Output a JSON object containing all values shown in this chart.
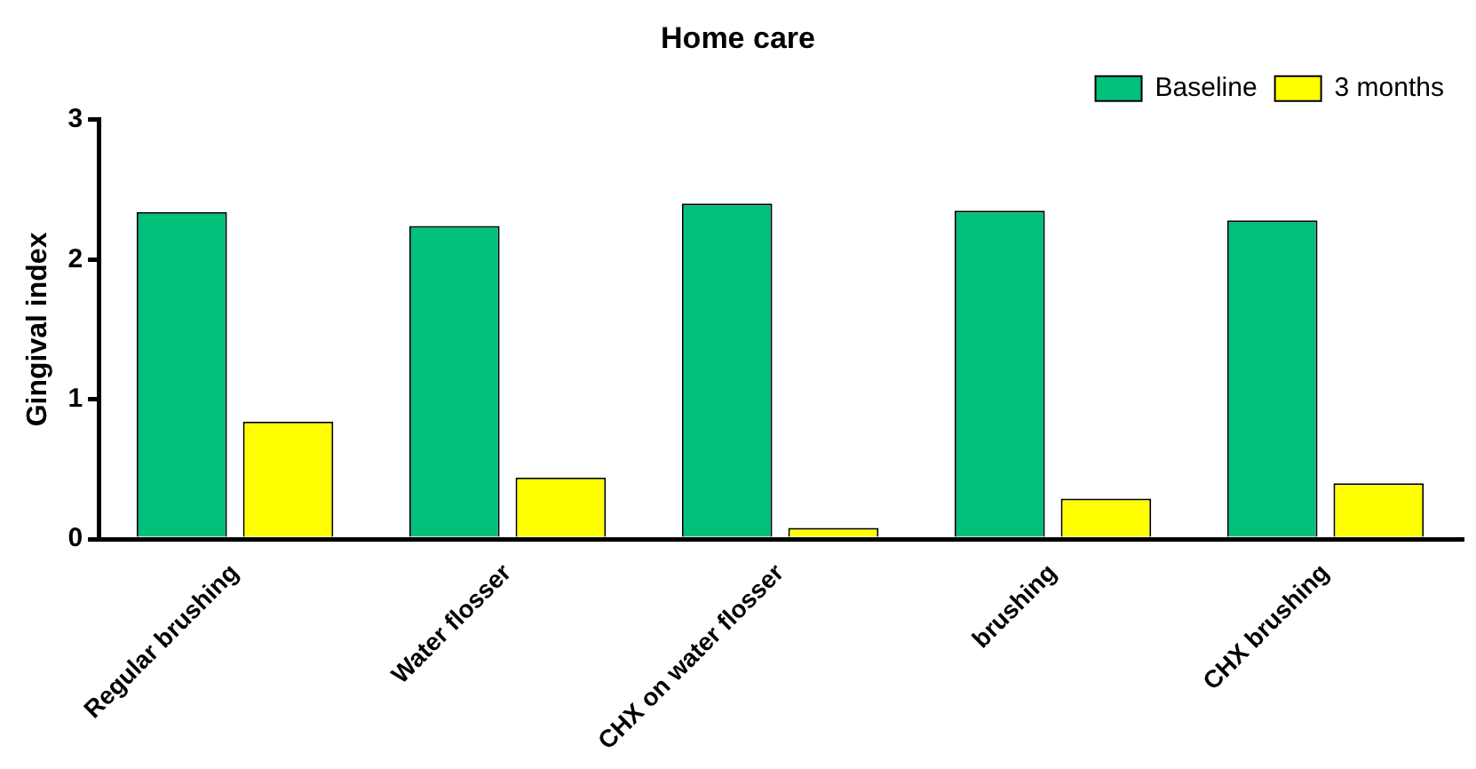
{
  "chart_data": {
    "type": "bar",
    "title": "Home care",
    "ylabel": "Gingival index",
    "categories": [
      "Regular brushing",
      "Water flosser",
      "CHX on water flosser",
      "brushing",
      "CHX brushing"
    ],
    "series": [
      {
        "name": "Baseline",
        "color": "#00c07a",
        "values": [
          2.34,
          2.24,
          2.4,
          2.35,
          2.28
        ]
      },
      {
        "name": "3 months",
        "color": "#ffff00",
        "values": [
          0.84,
          0.44,
          0.08,
          0.29,
          0.4
        ]
      }
    ],
    "ylim": [
      0,
      3
    ],
    "yticks": [
      0,
      1,
      2,
      3
    ],
    "grid": false,
    "legend": "top right"
  }
}
